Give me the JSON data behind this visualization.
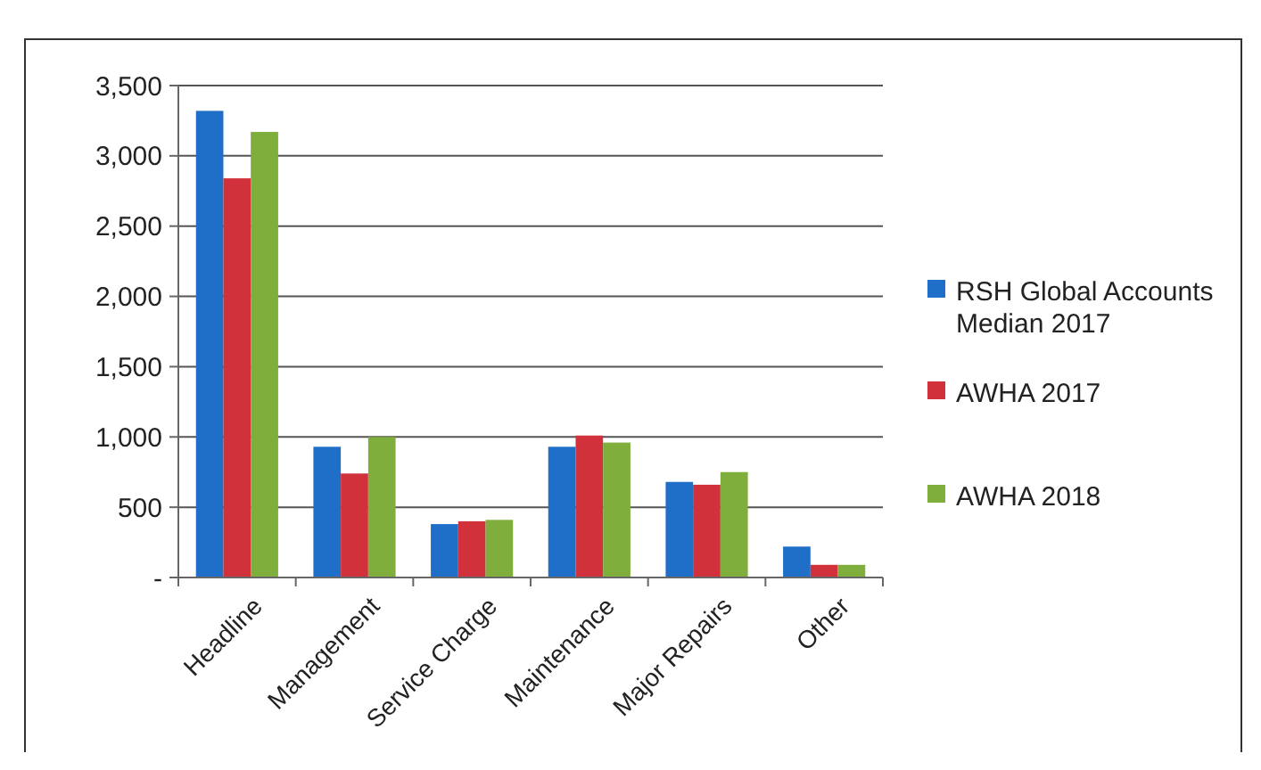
{
  "chart_data": {
    "type": "bar",
    "categories": [
      "Headline",
      "Management",
      "Service Charge",
      "Maintenance",
      "Major Repairs",
      "Other"
    ],
    "series": [
      {
        "name": "RSH Global Accounts Median 2017",
        "color": "#1f6fc8",
        "values": [
          3320,
          930,
          380,
          930,
          680,
          220
        ]
      },
      {
        "name": "AWHA 2017",
        "color": "#d0313a",
        "values": [
          2840,
          740,
          400,
          1010,
          660,
          90
        ]
      },
      {
        "name": "AWHA 2018",
        "color": "#7fae3c",
        "values": [
          3170,
          1000,
          410,
          960,
          750,
          90
        ]
      }
    ],
    "ylim": [
      0,
      3500
    ],
    "yticks": [
      {
        "value": 0,
        "label": "-"
      },
      {
        "value": 500,
        "label": "500"
      },
      {
        "value": 1000,
        "label": "1,000"
      },
      {
        "value": 1500,
        "label": "1,500"
      },
      {
        "value": 2000,
        "label": "2,000"
      },
      {
        "value": 2500,
        "label": "2,500"
      },
      {
        "value": 3000,
        "label": "3,000"
      },
      {
        "value": 3500,
        "label": "3,500"
      }
    ],
    "grid": "y",
    "legend": "right"
  }
}
